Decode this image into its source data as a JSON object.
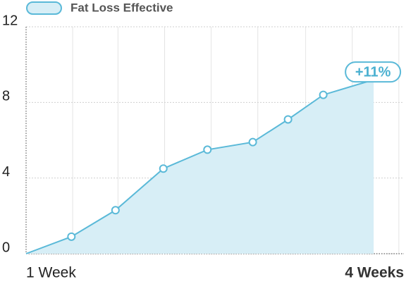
{
  "chart_data": {
    "type": "area",
    "series": [
      {
        "name": "Fat Loss Effective",
        "color": "#5ab9d8",
        "fill": "#d7eef6",
        "x": [
          1.0,
          1.36,
          1.71,
          2.09,
          2.44,
          2.8,
          3.08,
          3.36,
          3.76
        ],
        "values": [
          0,
          0.9,
          2.3,
          4.5,
          5.5,
          5.9,
          7.1,
          8.4,
          9.2
        ]
      }
    ],
    "xlim": [
      1,
      4
    ],
    "xticks": [
      {
        "value": 1,
        "label": "1 Week"
      },
      {
        "value": 4,
        "label": "4 Weeks"
      }
    ],
    "xgrid": [
      1.37,
      1.73,
      2.1,
      2.47,
      2.84,
      3.22,
      3.59,
      3.96
    ],
    "ylim": [
      0,
      12
    ],
    "yticks": [
      0,
      4,
      8,
      12
    ],
    "grid": true,
    "legend": "top-left",
    "annotation": "+11%"
  }
}
